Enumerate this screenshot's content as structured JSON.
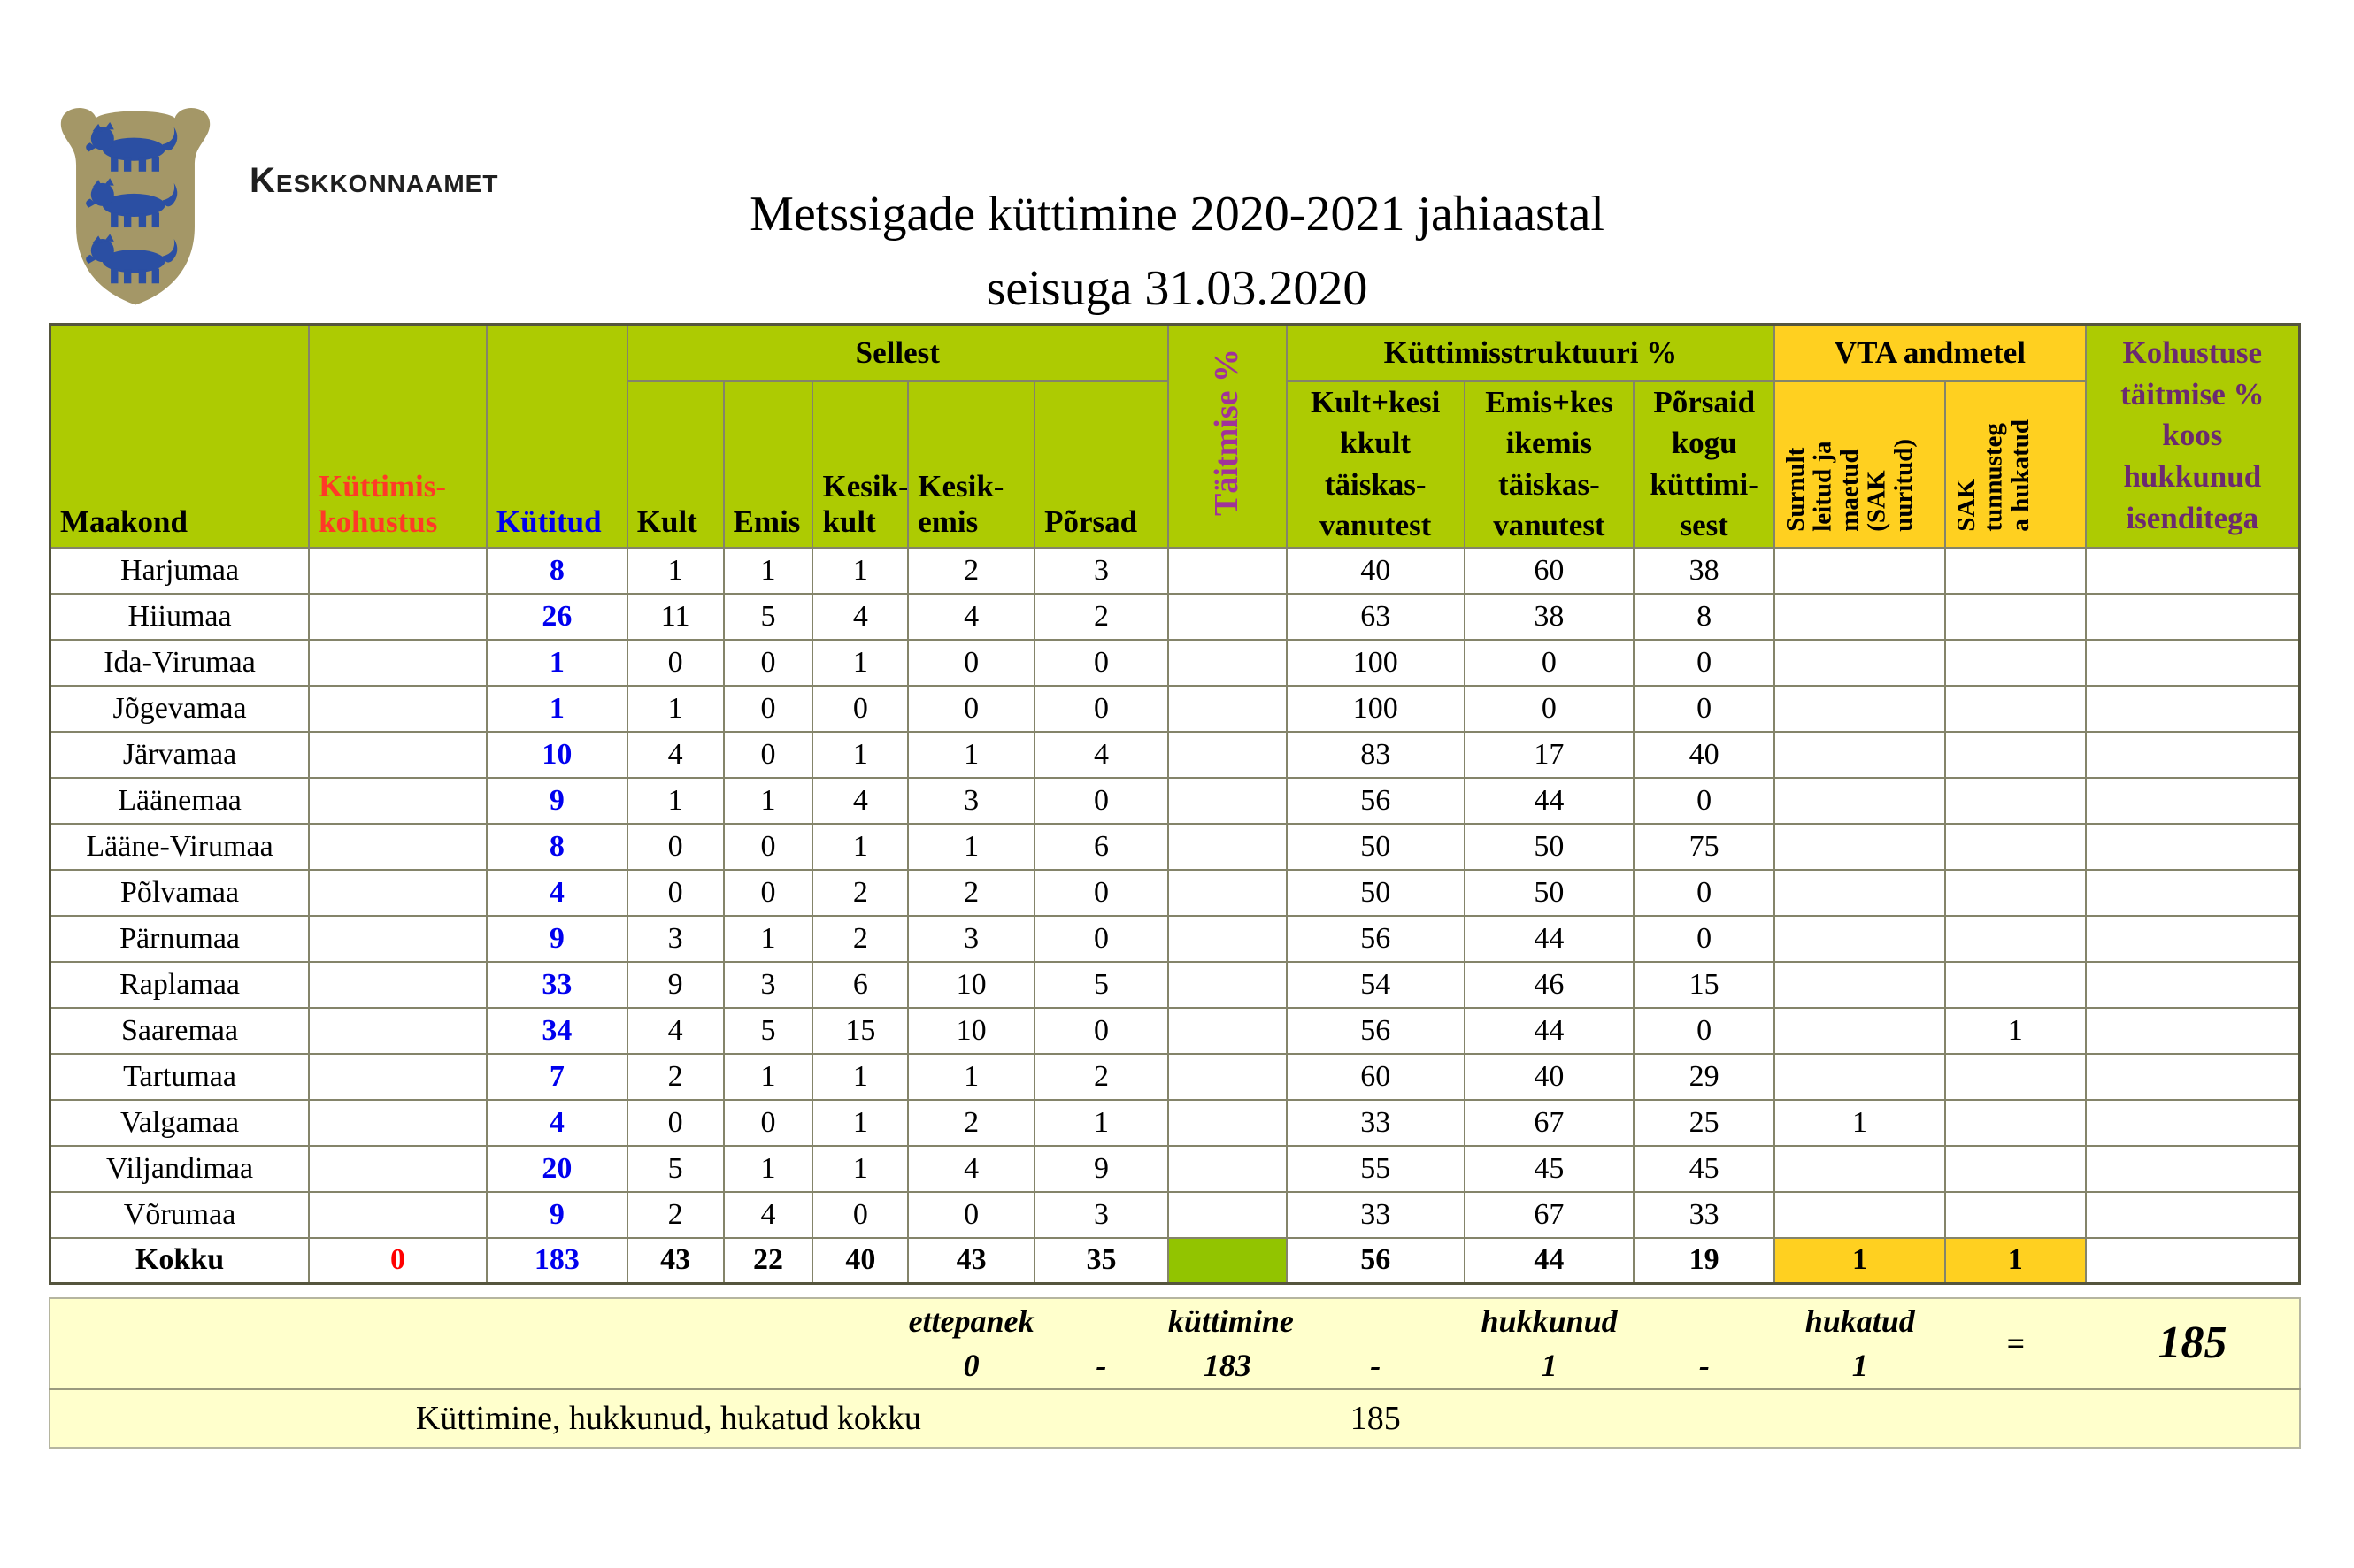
{
  "brand": "Keskkonnaamet",
  "title": {
    "line1": "Metssigade küttimine 2020-2021 jahiaastal",
    "line2": "seisuga 31.03.2020"
  },
  "colors": {
    "header_green": "#ADCB02",
    "total_taitmise_green": "#92C400",
    "vta_orange": "#FFD020",
    "summary_cream": "#FFFFCC",
    "kohustus_red": "#FF3928",
    "kytitud_blue": "#0000EE",
    "taitmise_purple": "#A03399",
    "kohustuse_plum": "#6B2A70",
    "lion_blue": "#2B4FA3",
    "shield_tan": "#A49767"
  },
  "table": {
    "headers": {
      "maakond": "Maakond",
      "kohustus_l1": "Küttimis-",
      "kohustus_l2": "kohustus",
      "kytitud": "Kütitud",
      "sellest": "Sellest",
      "kult": "Kult",
      "emis": "Emis",
      "kesikkult_l1": "Kesik-",
      "kesikkult_l2": "kult",
      "kesikemis_l1": "Kesik-",
      "kesikemis_l2": "emis",
      "porsad": "Põrsad",
      "taitmise": "Täitmise %",
      "struktuur": "Küttimisstruktuuri %",
      "struct1_l1": "Kult+kesi",
      "struct1_l2": "kkult",
      "struct1_l3": "täiskas-",
      "struct1_l4": "vanutest",
      "struct2_l1": "Emis+kes",
      "struct2_l2": "ikemis",
      "struct2_l3": "täiskas-",
      "struct2_l4": "vanutest",
      "struct3_l1": "Põrsaid",
      "struct3_l2": "kogu",
      "struct3_l3": "küttimi-",
      "struct3_l4": "sest",
      "vta": "VTA andmetel",
      "vta1_l1": "Surnult",
      "vta1_l2": "leitud ja",
      "vta1_l3": "maetud",
      "vta1_l4": "(SAK",
      "vta1_l5": "uuritud)",
      "vta2_l1": "SAK",
      "vta2_l2": "tunnusteg",
      "vta2_l3": "a hukatud",
      "kohustuse_l1": "Kohustuse",
      "kohustuse_l2": "täitmise %",
      "kohustuse_l3": "koos",
      "kohustuse_l4": "hukkunud",
      "kohustuse_l5": "isenditega"
    },
    "rows": [
      {
        "name": "Harjumaa",
        "kohustus": "",
        "kytitud": "8",
        "kult": "1",
        "emis": "1",
        "kk": "1",
        "ke": "2",
        "porsad": "3",
        "taitmise": "",
        "s1": "40",
        "s2": "60",
        "s3": "38",
        "vta1": "",
        "vta2": "",
        "kohustuse": ""
      },
      {
        "name": "Hiiumaa",
        "kohustus": "",
        "kytitud": "26",
        "kult": "11",
        "emis": "5",
        "kk": "4",
        "ke": "4",
        "porsad": "2",
        "taitmise": "",
        "s1": "63",
        "s2": "38",
        "s3": "8",
        "vta1": "",
        "vta2": "",
        "kohustuse": ""
      },
      {
        "name": "Ida-Virumaa",
        "kohustus": "",
        "kytitud": "1",
        "kult": "0",
        "emis": "0",
        "kk": "1",
        "ke": "0",
        "porsad": "0",
        "taitmise": "",
        "s1": "100",
        "s2": "0",
        "s3": "0",
        "vta1": "",
        "vta2": "",
        "kohustuse": ""
      },
      {
        "name": "Jõgevamaa",
        "kohustus": "",
        "kytitud": "1",
        "kult": "1",
        "emis": "0",
        "kk": "0",
        "ke": "0",
        "porsad": "0",
        "taitmise": "",
        "s1": "100",
        "s2": "0",
        "s3": "0",
        "vta1": "",
        "vta2": "",
        "kohustuse": ""
      },
      {
        "name": "Järvamaa",
        "kohustus": "",
        "kytitud": "10",
        "kult": "4",
        "emis": "0",
        "kk": "1",
        "ke": "1",
        "porsad": "4",
        "taitmise": "",
        "s1": "83",
        "s2": "17",
        "s3": "40",
        "vta1": "",
        "vta2": "",
        "kohustuse": ""
      },
      {
        "name": "Läänemaa",
        "kohustus": "",
        "kytitud": "9",
        "kult": "1",
        "emis": "1",
        "kk": "4",
        "ke": "3",
        "porsad": "0",
        "taitmise": "",
        "s1": "56",
        "s2": "44",
        "s3": "0",
        "vta1": "",
        "vta2": "",
        "kohustuse": ""
      },
      {
        "name": "Lääne-Virumaa",
        "kohustus": "",
        "kytitud": "8",
        "kult": "0",
        "emis": "0",
        "kk": "1",
        "ke": "1",
        "porsad": "6",
        "taitmise": "",
        "s1": "50",
        "s2": "50",
        "s3": "75",
        "vta1": "",
        "vta2": "",
        "kohustuse": ""
      },
      {
        "name": "Põlvamaa",
        "kohustus": "",
        "kytitud": "4",
        "kult": "0",
        "emis": "0",
        "kk": "2",
        "ke": "2",
        "porsad": "0",
        "taitmise": "",
        "s1": "50",
        "s2": "50",
        "s3": "0",
        "vta1": "",
        "vta2": "",
        "kohustuse": ""
      },
      {
        "name": "Pärnumaa",
        "kohustus": "",
        "kytitud": "9",
        "kult": "3",
        "emis": "1",
        "kk": "2",
        "ke": "3",
        "porsad": "0",
        "taitmise": "",
        "s1": "56",
        "s2": "44",
        "s3": "0",
        "vta1": "",
        "vta2": "",
        "kohustuse": ""
      },
      {
        "name": "Raplamaa",
        "kohustus": "",
        "kytitud": "33",
        "kult": "9",
        "emis": "3",
        "kk": "6",
        "ke": "10",
        "porsad": "5",
        "taitmise": "",
        "s1": "54",
        "s2": "46",
        "s3": "15",
        "vta1": "",
        "vta2": "",
        "kohustuse": ""
      },
      {
        "name": "Saaremaa",
        "kohustus": "",
        "kytitud": "34",
        "kult": "4",
        "emis": "5",
        "kk": "15",
        "ke": "10",
        "porsad": "0",
        "taitmise": "",
        "s1": "56",
        "s2": "44",
        "s3": "0",
        "vta1": "",
        "vta2": "1",
        "kohustuse": ""
      },
      {
        "name": "Tartumaa",
        "kohustus": "",
        "kytitud": "7",
        "kult": "2",
        "emis": "1",
        "kk": "1",
        "ke": "1",
        "porsad": "2",
        "taitmise": "",
        "s1": "60",
        "s2": "40",
        "s3": "29",
        "vta1": "",
        "vta2": "",
        "kohustuse": ""
      },
      {
        "name": "Valgamaa",
        "kohustus": "",
        "kytitud": "4",
        "kult": "0",
        "emis": "0",
        "kk": "1",
        "ke": "2",
        "porsad": "1",
        "taitmise": "",
        "s1": "33",
        "s2": "67",
        "s3": "25",
        "vta1": "1",
        "vta2": "",
        "kohustuse": ""
      },
      {
        "name": "Viljandimaa",
        "kohustus": "",
        "kytitud": "20",
        "kult": "5",
        "emis": "1",
        "kk": "1",
        "ke": "4",
        "porsad": "9",
        "taitmise": "",
        "s1": "55",
        "s2": "45",
        "s3": "45",
        "vta1": "",
        "vta2": "",
        "kohustuse": ""
      },
      {
        "name": "Võrumaa",
        "kohustus": "",
        "kytitud": "9",
        "kult": "2",
        "emis": "4",
        "kk": "0",
        "ke": "0",
        "porsad": "3",
        "taitmise": "",
        "s1": "33",
        "s2": "67",
        "s3": "33",
        "vta1": "",
        "vta2": "",
        "kohustuse": ""
      }
    ],
    "total_row": {
      "name": "Kokku",
      "kohustus": "0",
      "kytitud": "183",
      "kult": "43",
      "emis": "22",
      "kk": "40",
      "ke": "43",
      "porsad": "35",
      "taitmise": "",
      "s1": "56",
      "s2": "44",
      "s3": "19",
      "vta1": "1",
      "vta2": "1",
      "kohustuse": ""
    }
  },
  "summary": {
    "row1": {
      "ettepanek_label": "ettepanek",
      "ettepanek_value": "0",
      "dash1": "-",
      "kyttimine_label": "küttimine",
      "kyttimine_value": "183",
      "dash2": "-",
      "hukkunud_label": "hukkunud",
      "hukkunud_value": "1",
      "dash3": "-",
      "hukatud_label": "hukatud",
      "hukatud_value": "1",
      "equals": "=",
      "total": "185"
    },
    "row2": {
      "label": "Küttimine, hukkunud, hukatud kokku",
      "value": "185"
    }
  }
}
